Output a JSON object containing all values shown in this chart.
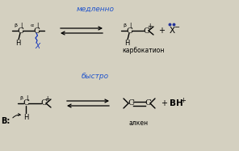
{
  "bg_color": "#d4d0c0",
  "top_label": "медленно",
  "bottom_label": "быстро",
  "top_product_label": "карбокатион",
  "bottom_product_label": "алкен",
  "label_color": "#2255cc",
  "text_color": "#000000",
  "figsize": [
    2.96,
    1.87
  ],
  "dpi": 100
}
